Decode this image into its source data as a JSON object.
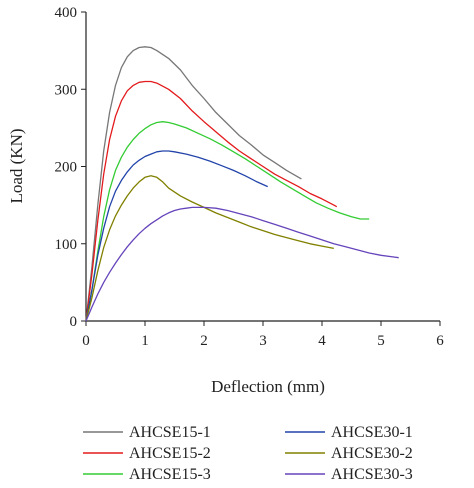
{
  "chart_data": {
    "type": "line",
    "title": "",
    "xlabel": "Deflection (mm)",
    "ylabel": "Load (KN)",
    "xlim": [
      0,
      6
    ],
    "ylim": [
      0,
      400
    ],
    "xticks": [
      "0",
      "1",
      "2",
      "3",
      "4",
      "5",
      "6"
    ],
    "yticks": [
      "0",
      "100",
      "200",
      "300",
      "400"
    ],
    "grid": false,
    "legend_position": "bottom",
    "series": [
      {
        "name": "AHCSE15-1",
        "color": "#777777",
        "points": [
          [
            0,
            0
          ],
          [
            0.1,
            70
          ],
          [
            0.2,
            150
          ],
          [
            0.3,
            220
          ],
          [
            0.4,
            270
          ],
          [
            0.5,
            305
          ],
          [
            0.6,
            328
          ],
          [
            0.7,
            342
          ],
          [
            0.8,
            350
          ],
          [
            0.9,
            354
          ],
          [
            1.0,
            355
          ],
          [
            1.1,
            354
          ],
          [
            1.2,
            350
          ],
          [
            1.4,
            340
          ],
          [
            1.6,
            325
          ],
          [
            1.8,
            305
          ],
          [
            2.0,
            288
          ],
          [
            2.2,
            270
          ],
          [
            2.4,
            255
          ],
          [
            2.6,
            240
          ],
          [
            2.8,
            228
          ],
          [
            3.0,
            215
          ],
          [
            3.2,
            205
          ],
          [
            3.4,
            195
          ],
          [
            3.65,
            184
          ]
        ]
      },
      {
        "name": "AHCSE15-2",
        "color": "#e31a1c",
        "points": [
          [
            0,
            0
          ],
          [
            0.1,
            60
          ],
          [
            0.2,
            130
          ],
          [
            0.3,
            190
          ],
          [
            0.4,
            235
          ],
          [
            0.5,
            265
          ],
          [
            0.6,
            285
          ],
          [
            0.7,
            298
          ],
          [
            0.8,
            305
          ],
          [
            0.9,
            309
          ],
          [
            1.0,
            310
          ],
          [
            1.1,
            310
          ],
          [
            1.2,
            308
          ],
          [
            1.4,
            300
          ],
          [
            1.6,
            288
          ],
          [
            1.8,
            272
          ],
          [
            2.0,
            258
          ],
          [
            2.2,
            245
          ],
          [
            2.4,
            232
          ],
          [
            2.6,
            220
          ],
          [
            2.8,
            210
          ],
          [
            3.0,
            200
          ],
          [
            3.2,
            190
          ],
          [
            3.4,
            182
          ],
          [
            3.6,
            174
          ],
          [
            3.8,
            165
          ],
          [
            4.0,
            158
          ],
          [
            4.2,
            150
          ],
          [
            4.25,
            148
          ]
        ]
      },
      {
        "name": "AHCSE15-3",
        "color": "#33cc33",
        "points": [
          [
            0,
            0
          ],
          [
            0.1,
            40
          ],
          [
            0.2,
            90
          ],
          [
            0.3,
            135
          ],
          [
            0.4,
            170
          ],
          [
            0.5,
            195
          ],
          [
            0.6,
            212
          ],
          [
            0.7,
            225
          ],
          [
            0.8,
            235
          ],
          [
            0.9,
            243
          ],
          [
            1.0,
            249
          ],
          [
            1.1,
            254
          ],
          [
            1.2,
            257
          ],
          [
            1.3,
            258
          ],
          [
            1.4,
            257
          ],
          [
            1.5,
            255
          ],
          [
            1.7,
            250
          ],
          [
            1.9,
            243
          ],
          [
            2.1,
            236
          ],
          [
            2.3,
            228
          ],
          [
            2.5,
            219
          ],
          [
            2.7,
            210
          ],
          [
            2.9,
            200
          ],
          [
            3.1,
            190
          ],
          [
            3.3,
            180
          ],
          [
            3.5,
            171
          ],
          [
            3.7,
            162
          ],
          [
            3.9,
            153
          ],
          [
            4.1,
            146
          ],
          [
            4.3,
            140
          ],
          [
            4.5,
            135
          ],
          [
            4.65,
            132
          ],
          [
            4.8,
            132
          ]
        ]
      },
      {
        "name": "AHCSE30-1",
        "color": "#2244aa",
        "points": [
          [
            0,
            0
          ],
          [
            0.1,
            40
          ],
          [
            0.2,
            85
          ],
          [
            0.3,
            120
          ],
          [
            0.4,
            148
          ],
          [
            0.5,
            168
          ],
          [
            0.6,
            182
          ],
          [
            0.7,
            193
          ],
          [
            0.8,
            202
          ],
          [
            0.9,
            208
          ],
          [
            1.0,
            213
          ],
          [
            1.1,
            216
          ],
          [
            1.2,
            219
          ],
          [
            1.3,
            220
          ],
          [
            1.4,
            220
          ],
          [
            1.5,
            219
          ],
          [
            1.7,
            216
          ],
          [
            1.9,
            212
          ],
          [
            2.1,
            207
          ],
          [
            2.3,
            201
          ],
          [
            2.5,
            195
          ],
          [
            2.7,
            188
          ],
          [
            2.9,
            180
          ],
          [
            3.08,
            174
          ]
        ]
      },
      {
        "name": "AHCSE30-2",
        "color": "#808000",
        "points": [
          [
            0,
            0
          ],
          [
            0.1,
            30
          ],
          [
            0.2,
            65
          ],
          [
            0.3,
            95
          ],
          [
            0.4,
            118
          ],
          [
            0.5,
            136
          ],
          [
            0.6,
            150
          ],
          [
            0.7,
            162
          ],
          [
            0.8,
            172
          ],
          [
            0.9,
            180
          ],
          [
            1.0,
            186
          ],
          [
            1.1,
            188
          ],
          [
            1.2,
            186
          ],
          [
            1.3,
            180
          ],
          [
            1.4,
            172
          ],
          [
            1.6,
            162
          ],
          [
            1.8,
            154
          ],
          [
            2.0,
            147
          ],
          [
            2.2,
            140
          ],
          [
            2.4,
            134
          ],
          [
            2.6,
            128
          ],
          [
            2.8,
            122
          ],
          [
            3.0,
            117
          ],
          [
            3.2,
            112
          ],
          [
            3.4,
            108
          ],
          [
            3.6,
            104
          ],
          [
            3.8,
            100
          ],
          [
            4.0,
            97
          ],
          [
            4.2,
            94
          ]
        ]
      },
      {
        "name": "AHCSE30-3",
        "color": "#6644bb",
        "points": [
          [
            0,
            0
          ],
          [
            0.1,
            18
          ],
          [
            0.2,
            35
          ],
          [
            0.3,
            50
          ],
          [
            0.4,
            63
          ],
          [
            0.5,
            75
          ],
          [
            0.6,
            86
          ],
          [
            0.7,
            96
          ],
          [
            0.8,
            105
          ],
          [
            0.9,
            113
          ],
          [
            1.0,
            120
          ],
          [
            1.1,
            126
          ],
          [
            1.2,
            131
          ],
          [
            1.3,
            136
          ],
          [
            1.4,
            140
          ],
          [
            1.5,
            143
          ],
          [
            1.6,
            145
          ],
          [
            1.7,
            146
          ],
          [
            1.8,
            147
          ],
          [
            2.0,
            147
          ],
          [
            2.2,
            146
          ],
          [
            2.4,
            143
          ],
          [
            2.6,
            139
          ],
          [
            2.8,
            135
          ],
          [
            3.0,
            130
          ],
          [
            3.2,
            125
          ],
          [
            3.4,
            120
          ],
          [
            3.6,
            115
          ],
          [
            3.8,
            110
          ],
          [
            4.0,
            105
          ],
          [
            4.2,
            100
          ],
          [
            4.4,
            96
          ],
          [
            4.6,
            92
          ],
          [
            4.8,
            88
          ],
          [
            5.0,
            85
          ],
          [
            5.2,
            83
          ],
          [
            5.3,
            82
          ]
        ]
      }
    ]
  }
}
